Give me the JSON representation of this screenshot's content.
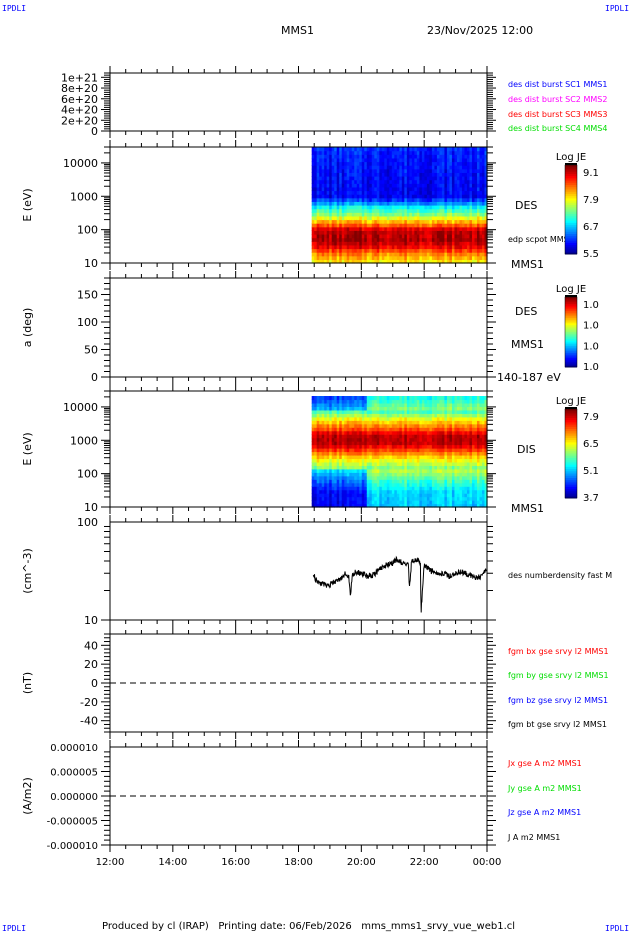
{
  "header": {
    "corner_left": "IPDLI",
    "corner_right": "IPDLI",
    "spacecraft": "MMS1",
    "datetime": "23/Nov/2025 12:00"
  },
  "footer": {
    "text": "Produced by cl (IRAP)   Printing date: 06/Feb/2026   mms_mms1_srvy_vue_web1.cl",
    "corner_left": "IPDLI",
    "corner_right": "IPDLI"
  },
  "x_axis": {
    "ticks": [
      "12:00",
      "14:00",
      "16:00",
      "18:00",
      "20:00",
      "22:00",
      "00:00"
    ],
    "range_hours": [
      12,
      24
    ]
  },
  "colors": {
    "blue": "#0000ff",
    "magenta": "#ff00ff",
    "red": "#ff0000",
    "green": "#00dd00",
    "black": "#000000"
  },
  "chart_data": [
    {
      "type": "line",
      "ylabel": "",
      "ylim": [
        0,
        1.08e+21
      ],
      "yticks": [
        "0",
        "2e+20",
        "4e+20",
        "6e+20",
        "8e+20",
        "1e+21"
      ],
      "legend": [
        {
          "text": "des dist burst SC1 MMS1",
          "color": "#0000ff"
        },
        {
          "text": "des dist burst SC2 MMS2",
          "color": "#ff00ff"
        },
        {
          "text": "des dist burst SC3 MMS3",
          "color": "#ff0000"
        },
        {
          "text": "des dist burst SC4 MMS4",
          "color": "#00dd00"
        }
      ],
      "reference_line": 0
    },
    {
      "type": "heatmap",
      "ylabel": "E (eV)",
      "yscale": "log",
      "ylim": [
        10,
        30000
      ],
      "yticks": [
        "10",
        "100",
        "1000",
        "10000"
      ],
      "labels": [
        "DES",
        "edp scpot MMS1",
        "MMS1"
      ],
      "colorbar": {
        "title": "Log JE",
        "ticks": [
          "9.1",
          "7.9",
          "6.7",
          "5.5"
        ],
        "range": [
          5.5,
          9.1
        ]
      },
      "time_range": [
        18.42,
        24
      ],
      "energy": [
        10,
        20,
        30,
        50,
        100,
        130,
        200,
        300,
        500,
        700,
        1000,
        10000,
        30000
      ],
      "log_je": [
        7.8,
        8.3,
        8.8,
        9.1,
        9.0,
        8.5,
        7.9,
        7.3,
        6.8,
        6.2,
        5.8,
        5.9,
        6.0
      ]
    },
    {
      "type": "heatmap",
      "ylabel": "a (deg)",
      "ylim": [
        0,
        180
      ],
      "yticks": [
        "0",
        "50",
        "100",
        "150"
      ],
      "labels": [
        "DES",
        "MMS1",
        "140-187 eV"
      ],
      "colorbar": {
        "title": "Log JE",
        "ticks": [
          "1.0",
          "1.0",
          "1.0",
          "1.0"
        ]
      }
    },
    {
      "type": "heatmap",
      "ylabel": "E (eV)",
      "yscale": "log",
      "ylim": [
        10,
        30000
      ],
      "yticks": [
        "10",
        "100",
        "1000",
        "10000"
      ],
      "labels": [
        "DIS",
        "MMS1"
      ],
      "colorbar": {
        "title": "Log JE",
        "ticks": [
          "7.9",
          "6.5",
          "5.1",
          "3.7"
        ],
        "range": [
          3.7,
          7.9
        ]
      },
      "time_range": [
        18.42,
        24
      ],
      "energy": [
        10,
        30,
        70,
        150,
        300,
        500,
        800,
        1500,
        2000,
        4000,
        7000,
        21000
      ],
      "log_je": [
        4.6,
        4.7,
        5.2,
        5.8,
        6.5,
        7.2,
        7.8,
        7.8,
        7.3,
        6.5,
        5.6,
        4.9
      ]
    },
    {
      "type": "line",
      "ylabel": "(cm^-3)",
      "yscale": "log",
      "ylim": [
        10,
        100
      ],
      "yticks": [
        "10",
        "100"
      ],
      "series": [
        {
          "name": "des numberdensity fast M",
          "color": "#000000",
          "x": [
            18.46,
            18.55,
            18.7,
            18.9,
            19.1,
            19.3,
            19.5,
            19.6,
            19.65,
            19.7,
            19.8,
            20.0,
            20.2,
            20.4,
            20.6,
            20.8,
            21.0,
            21.1,
            21.3,
            21.5,
            21.53,
            21.6,
            21.8,
            21.88,
            21.9,
            22.0,
            22.2,
            22.4,
            22.6,
            22.8,
            23.0,
            23.2,
            23.4,
            23.6,
            23.8,
            24.0
          ],
          "y": [
            30,
            26,
            24,
            22,
            24,
            26,
            30,
            28,
            17,
            27,
            31,
            30,
            28,
            29,
            33,
            37,
            38,
            42,
            38,
            36,
            21,
            39,
            40,
            38,
            12,
            37,
            32,
            29,
            30,
            28,
            30,
            31,
            29,
            27,
            28,
            33
          ]
        }
      ]
    },
    {
      "type": "line",
      "ylabel": "(nT)",
      "ylim": [
        -52,
        52
      ],
      "yticks": [
        "-40",
        "-20",
        "0",
        "20",
        "40"
      ],
      "reference_line": 0,
      "legend": [
        {
          "text": "fgm bx gse srvy l2 MMS1",
          "color": "#ff0000"
        },
        {
          "text": "fgm by gse srvy l2 MMS1",
          "color": "#00dd00"
        },
        {
          "text": "fgm bz gse srvy l2 MMS1",
          "color": "#0000ff"
        },
        {
          "text": "fgm bt gse srvy l2 MMS1",
          "color": "#000000"
        }
      ]
    },
    {
      "type": "line",
      "ylabel": "(A/m2)",
      "ylim": [
        -1e-05,
        1e-05
      ],
      "yticks": [
        "-0.000010",
        "-0.000005",
        "0.000000",
        "0.000005",
        "0.000010"
      ],
      "reference_line": 0,
      "legend": [
        {
          "text": "Jx gse A m2 MMS1",
          "color": "#ff0000"
        },
        {
          "text": "Jy gse A m2 MMS1",
          "color": "#00dd00"
        },
        {
          "text": "Jz gse A m2 MMS1",
          "color": "#0000ff"
        },
        {
          "text": "J A m2 MMS1",
          "color": "#000000"
        }
      ]
    }
  ]
}
